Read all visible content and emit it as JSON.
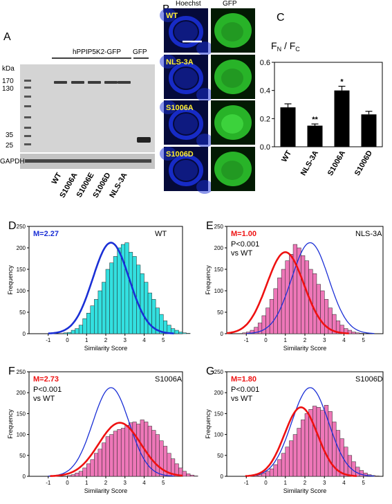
{
  "panel_labels": {
    "A": "A",
    "B": "B",
    "C": "C",
    "D": "D",
    "E": "E",
    "F": "F",
    "G": "G"
  },
  "panelA": {
    "kda_label": "kDa",
    "markers": [
      "170",
      "130",
      "35",
      "25"
    ],
    "construct_label": "hPPIP5K2-GFP",
    "gfp_label": "GFP",
    "loading_label": "GAPDH",
    "lanes": [
      "WT",
      "S1006A",
      "S1006E",
      "S1006D",
      "NLS-3A"
    ]
  },
  "panelB": {
    "col_headers": [
      "Hoechst",
      "GFP"
    ],
    "rows": [
      "WT",
      "NLS-3A",
      "S1006A",
      "S1006D"
    ],
    "colors": {
      "hoechst": "#1a2fd6",
      "gfp": "#2fcf2f",
      "label": "#ffee33"
    }
  },
  "panelC": {
    "ylabel_main": "F",
    "ylabel_sub1": "N",
    "ylabel_sep": " / F",
    "ylabel_sub2": "C",
    "yticks": [
      "0.0",
      "0.2",
      "0.4",
      "0.6"
    ],
    "significance": [
      "",
      "**",
      "*",
      ""
    ]
  },
  "histograms": {
    "xlabel": "Similarity Score",
    "ylabel": "Frequency",
    "xticks": [
      "-1",
      "0",
      "1",
      "2",
      "3",
      "4",
      "5"
    ],
    "yticks": [
      "0",
      "50",
      "100",
      "150",
      "200",
      "250"
    ],
    "D": {
      "mean": "M=2.27",
      "name": "WT"
    },
    "E": {
      "mean": "M=1.00",
      "name": "NLS-3A",
      "p": "P<0.001",
      "vs": "vs WT"
    },
    "F": {
      "mean": "M=2.73",
      "name": "S1006A",
      "p": "P<0.001",
      "vs": "vs WT"
    },
    "G": {
      "mean": "M=1.80",
      "name": "S1006D",
      "p": "P<0.001",
      "vs": "vs WT"
    }
  },
  "colors": {
    "wt_fill": "#33e0e0",
    "wt_curve": "#1a2fd6",
    "mut_fill": "#ee77b8",
    "mut_curve": "#ee1111",
    "mean_wt": "#1a2fd6",
    "mean_mut": "#ee1111"
  },
  "chart_data": [
    {
      "type": "bar",
      "panel": "C",
      "categories": [
        "WT",
        "NLS-3A",
        "S1006A",
        "S1006D"
      ],
      "values": [
        0.28,
        0.15,
        0.4,
        0.23
      ],
      "errors": [
        0.025,
        0.012,
        0.03,
        0.022
      ],
      "ylim": [
        0,
        0.6
      ],
      "ylabel": "FN / FC"
    },
    {
      "type": "bar",
      "panel": "D",
      "title": "WT",
      "xlabel": "Similarity Score",
      "ylabel": "Frequency",
      "xlim": [
        -2,
        6
      ],
      "ylim": [
        0,
        250
      ],
      "bin_width": 0.2,
      "bin_start": -0.2,
      "values": [
        2,
        3,
        8,
        12,
        20,
        35,
        48,
        65,
        80,
        100,
        120,
        150,
        165,
        180,
        200,
        208,
        212,
        190,
        180,
        160,
        140,
        120,
        95,
        80,
        60,
        45,
        30,
        20,
        12,
        8,
        4,
        2,
        1
      ],
      "fit_mean": 2.27,
      "fit_sd": 0.95,
      "fit_peak": 212
    },
    {
      "type": "bar",
      "panel": "E",
      "title": "NLS-3A",
      "xlabel": "Similarity Score",
      "ylabel": "Frequency",
      "xlim": [
        -2,
        6
      ],
      "ylim": [
        0,
        250
      ],
      "bin_width": 0.2,
      "bin_start": -1.2,
      "values": [
        2,
        4,
        8,
        15,
        25,
        42,
        60,
        80,
        105,
        130,
        150,
        170,
        185,
        208,
        200,
        182,
        170,
        150,
        140,
        115,
        100,
        80,
        60,
        45,
        30,
        20,
        12,
        8,
        4,
        2,
        1
      ],
      "fit_mean": 1.0,
      "fit_sd": 0.95,
      "fit_peak": 190,
      "ref_mean": 2.27,
      "ref_sd": 0.95,
      "ref_peak": 212
    },
    {
      "type": "bar",
      "panel": "F",
      "title": "S1006A",
      "xlabel": "Similarity Score",
      "ylabel": "Frequency",
      "xlim": [
        -2,
        6
      ],
      "ylim": [
        0,
        250
      ],
      "bin_width": 0.2,
      "bin_start": 0.0,
      "values": [
        2,
        4,
        8,
        12,
        20,
        30,
        40,
        55,
        65,
        80,
        95,
        100,
        108,
        112,
        115,
        122,
        128,
        130,
        125,
        135,
        130,
        120,
        110,
        100,
        85,
        72,
        55,
        42,
        30,
        20,
        12,
        6,
        3,
        1
      ],
      "fit_mean": 2.73,
      "fit_sd": 1.1,
      "fit_peak": 128,
      "ref_mean": 2.27,
      "ref_sd": 0.95,
      "ref_peak": 212
    },
    {
      "type": "bar",
      "panel": "G",
      "title": "S1006D",
      "xlabel": "Similarity Score",
      "ylabel": "Frequency",
      "xlim": [
        -2,
        6
      ],
      "ylim": [
        0,
        250
      ],
      "bin_width": 0.2,
      "bin_start": -0.8,
      "values": [
        1,
        2,
        4,
        8,
        12,
        18,
        28,
        40,
        55,
        70,
        85,
        100,
        115,
        135,
        150,
        160,
        168,
        165,
        158,
        170,
        155,
        130,
        110,
        90,
        70,
        50,
        35,
        22,
        14,
        8,
        4,
        2,
        1
      ],
      "fit_mean": 1.8,
      "fit_sd": 0.85,
      "fit_peak": 165,
      "ref_mean": 2.27,
      "ref_sd": 0.95,
      "ref_peak": 212
    }
  ]
}
